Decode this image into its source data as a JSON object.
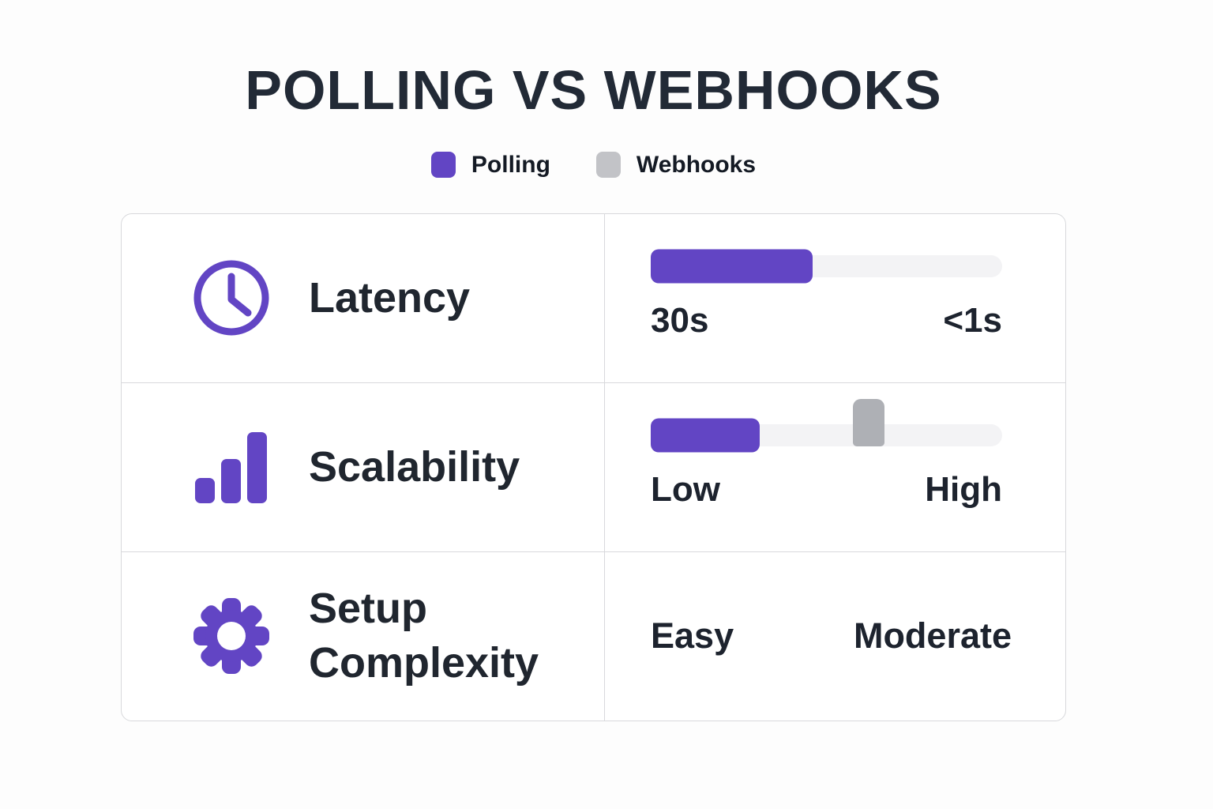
{
  "title": "POLLING VS WEBHOOKS",
  "legend": {
    "items": [
      {
        "label": "Polling",
        "color": "#6245C4"
      },
      {
        "label": "Webhooks",
        "color": "#C2C3C7"
      }
    ]
  },
  "rows": [
    {
      "label": "Latency",
      "icon": "clock-icon",
      "meter": {
        "fill_pct": 46,
        "left_label": "30s",
        "right_label": "<1s"
      }
    },
    {
      "label": "Scalability",
      "icon": "bar-chart-icon",
      "meter": {
        "fill_pct": 31,
        "marker_pct": 62,
        "left_label": "Low",
        "right_label": "High"
      }
    },
    {
      "label": "Setup Complexity",
      "icon": "gear-icon",
      "values": {
        "polling": "Easy",
        "webhooks": "Moderate"
      }
    }
  ],
  "colors": {
    "accent_purple": "#6245C4",
    "webhooks_marker_gray": "#AEB0B5",
    "track_gray": "#F3F3F5",
    "border_gray": "#D8D9DC",
    "text_dark": "#1F2530"
  },
  "chart_data": {
    "type": "table",
    "title": "POLLING VS WEBHOOKS",
    "legend": [
      "Polling",
      "Webhooks"
    ],
    "legend_position": "top-center",
    "categories": [
      "Latency",
      "Scalability",
      "Setup Complexity"
    ],
    "series": [
      {
        "name": "Polling",
        "values": [
          "30s",
          "Low",
          "Easy"
        ]
      },
      {
        "name": "Webhooks",
        "values": [
          "<1s",
          "High",
          "Moderate"
        ]
      }
    ],
    "meters": [
      {
        "metric": "Latency",
        "scale_left": "30s",
        "scale_right": "<1s",
        "polling_fill_pct": 46,
        "webhooks_marker_pct": null
      },
      {
        "metric": "Scalability",
        "scale_left": "Low",
        "scale_right": "High",
        "polling_fill_pct": 31,
        "webhooks_marker_pct": 62
      },
      {
        "metric": "Setup Complexity",
        "scale_left": "Easy",
        "scale_right": "Moderate",
        "polling_fill_pct": null,
        "webhooks_marker_pct": null
      }
    ]
  }
}
